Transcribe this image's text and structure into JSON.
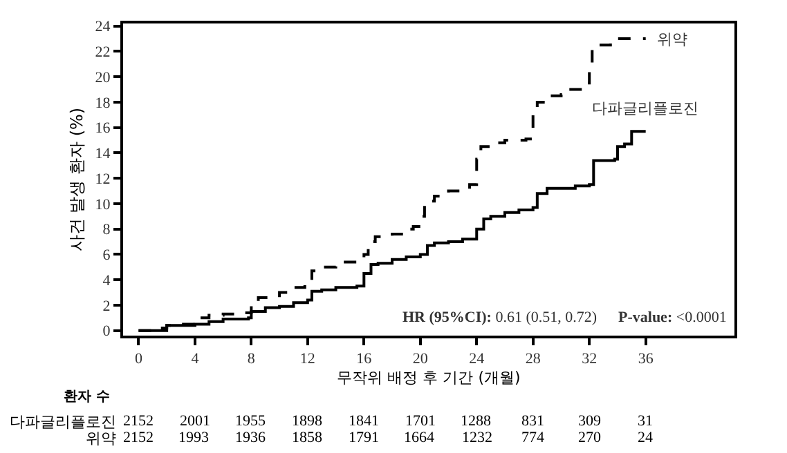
{
  "chart_data": {
    "type": "step",
    "xlabel": "무작위 배정 후 기간 (개월)",
    "ylabel": "사건 발생 환자 (%)",
    "xlim": [
      -1.1,
      42.3
    ],
    "ylim": [
      -0.4,
      24.2
    ],
    "xticks": [
      0,
      4,
      8,
      12,
      16,
      20,
      24,
      28,
      32,
      36
    ],
    "yticks": [
      0,
      2,
      4,
      6,
      8,
      10,
      12,
      14,
      16,
      18,
      20,
      22,
      24
    ],
    "series": [
      {
        "name": "위약",
        "color": "#000000",
        "line_style": "dashed",
        "x": [
          0,
          1,
          2,
          3,
          4,
          4.1,
          5,
          6,
          7.5,
          8,
          8.5,
          10,
          11,
          11.8,
          12.3,
          13,
          14,
          15.5,
          16,
          16.3,
          16.8,
          18,
          19,
          19.5,
          20,
          20.3,
          21,
          22,
          23,
          23.5,
          24,
          24.3,
          25,
          26,
          27.5,
          28,
          28.3,
          29,
          30,
          30.5,
          31.5,
          32,
          32.2,
          33.5,
          34,
          36
        ],
        "values": [
          0,
          0.2,
          0.4,
          0.5,
          0.6,
          1.0,
          1.2,
          1.3,
          1.4,
          2.0,
          2.6,
          3.0,
          3.4,
          3.8,
          4.7,
          5.0,
          5.4,
          5.6,
          6.0,
          7.0,
          7.4,
          7.6,
          8.0,
          8.2,
          9.0,
          10.2,
          10.6,
          11.0,
          11.1,
          11.5,
          13.5,
          14.5,
          14.8,
          15.0,
          15.1,
          17.0,
          18.0,
          18.5,
          18.6,
          19.0,
          19.5,
          21.0,
          22.5,
          22.8,
          23.0,
          23.0
        ]
      },
      {
        "name": "다파글리플로진",
        "color": "#000000",
        "line_style": "solid",
        "x": [
          0,
          2,
          4,
          5,
          6,
          7.8,
          8,
          9,
          10,
          11,
          12,
          12.3,
          13,
          14,
          15.5,
          16,
          16.5,
          17,
          18,
          19,
          20,
          20.5,
          21,
          22,
          23,
          24,
          24.5,
          25,
          26,
          27,
          28,
          28.3,
          29,
          31,
          32,
          32.3,
          33.8,
          34,
          34.5,
          35,
          36
        ],
        "values": [
          0,
          0.4,
          0.5,
          0.7,
          0.9,
          1.0,
          1.5,
          1.8,
          1.9,
          2.2,
          2.4,
          3.1,
          3.2,
          3.4,
          3.5,
          4.5,
          5.2,
          5.3,
          5.6,
          5.8,
          6.0,
          6.7,
          6.9,
          7.0,
          7.2,
          8.0,
          8.8,
          9.0,
          9.3,
          9.5,
          9.7,
          10.8,
          11.2,
          11.4,
          11.5,
          13.4,
          13.5,
          14.5,
          14.7,
          15.7,
          15.7
        ]
      }
    ],
    "annotations": [
      "HR (95%CI): 0.61 (0.51, 0.72)",
      "P-value: <0.0001",
      "환자 수",
      "다파글리플로진 2152 2001 1955 1898 1841 1701 1288 831 309 31",
      "위약 2152 1993 1936 1858 1791 1664 1232 774 270 24"
    ]
  }
}
